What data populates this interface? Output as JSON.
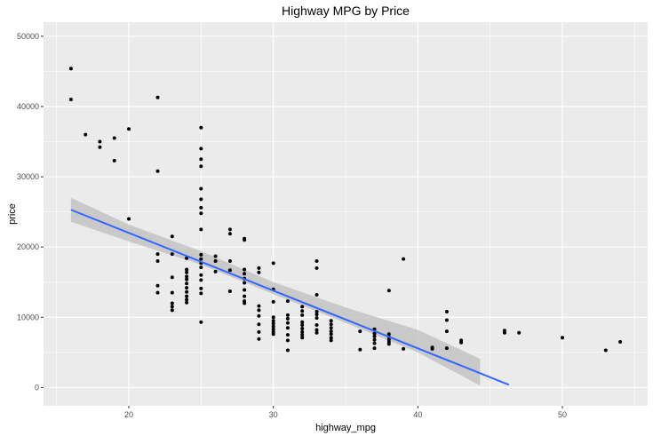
{
  "chart_data": {
    "type": "scatter",
    "title": "Highway MPG by Price",
    "xlabel": "highway_mpg",
    "ylabel": "price",
    "xlim": [
      14.1,
      55.9
    ],
    "ylim": [
      -2600,
      52000
    ],
    "x_ticks": [
      20,
      30,
      40,
      50
    ],
    "y_ticks": [
      0,
      10000,
      20000,
      30000,
      40000,
      50000
    ],
    "x_tick_labels": [
      "20",
      "30",
      "40",
      "50"
    ],
    "y_tick_labels": [
      "0",
      "10000",
      "20000",
      "30000",
      "40000",
      "50000"
    ],
    "grid": true,
    "panel_background": "#ebebeb",
    "grid_color": "#ffffff",
    "point_color": "#000000",
    "smooth_line_color": "#3366ff",
    "ribbon_color": "#bebebe",
    "points": [
      [
        16,
        45400
      ],
      [
        16,
        41000
      ],
      [
        17,
        36000
      ],
      [
        18,
        35000
      ],
      [
        18,
        34200
      ],
      [
        19,
        35500
      ],
      [
        19,
        32300
      ],
      [
        20,
        36800
      ],
      [
        20,
        24000
      ],
      [
        22,
        41300
      ],
      [
        22,
        30800
      ],
      [
        22,
        19000
      ],
      [
        22,
        18000
      ],
      [
        22,
        14500
      ],
      [
        22,
        13500
      ],
      [
        23,
        21500
      ],
      [
        23,
        19000
      ],
      [
        23,
        15700
      ],
      [
        23,
        13500
      ],
      [
        23,
        12000
      ],
      [
        23,
        11500
      ],
      [
        23,
        11000
      ],
      [
        24,
        18400
      ],
      [
        24,
        16800
      ],
      [
        24,
        16400
      ],
      [
        24,
        15800
      ],
      [
        24,
        15400
      ],
      [
        24,
        14800
      ],
      [
        24,
        14200
      ],
      [
        24,
        13600
      ],
      [
        24,
        13000
      ],
      [
        24,
        12500
      ],
      [
        24,
        12100
      ],
      [
        25,
        37000
      ],
      [
        25,
        34000
      ],
      [
        25,
        32500
      ],
      [
        25,
        31500
      ],
      [
        25,
        28300
      ],
      [
        25,
        26800
      ],
      [
        25,
        25600
      ],
      [
        25,
        24800
      ],
      [
        25,
        22500
      ],
      [
        25,
        18900
      ],
      [
        25,
        18300
      ],
      [
        25,
        17700
      ],
      [
        25,
        17100
      ],
      [
        25,
        16000
      ],
      [
        25,
        15300
      ],
      [
        25,
        14100
      ],
      [
        25,
        13400
      ],
      [
        25,
        9300
      ],
      [
        26,
        18700
      ],
      [
        26,
        18000
      ],
      [
        26,
        16500
      ],
      [
        27,
        22500
      ],
      [
        27,
        21900
      ],
      [
        27,
        18000
      ],
      [
        27,
        16700
      ],
      [
        27,
        13700
      ],
      [
        28,
        21200
      ],
      [
        28,
        21000
      ],
      [
        28,
        16800
      ],
      [
        28,
        16200
      ],
      [
        28,
        15500
      ],
      [
        28,
        14900
      ],
      [
        28,
        13900
      ],
      [
        28,
        13000
      ],
      [
        28,
        12300
      ],
      [
        28,
        12000
      ],
      [
        29,
        17000
      ],
      [
        29,
        16400
      ],
      [
        29,
        11600
      ],
      [
        29,
        11000
      ],
      [
        29,
        10200
      ],
      [
        29,
        9000
      ],
      [
        29,
        7900
      ],
      [
        29,
        6900
      ],
      [
        30,
        17700
      ],
      [
        30,
        14000
      ],
      [
        30,
        12200
      ],
      [
        30,
        10000
      ],
      [
        30,
        9500
      ],
      [
        30,
        9100
      ],
      [
        30,
        8700
      ],
      [
        30,
        8300
      ],
      [
        30,
        7900
      ],
      [
        30,
        7600
      ],
      [
        31,
        12300
      ],
      [
        31,
        10300
      ],
      [
        31,
        9800
      ],
      [
        31,
        9200
      ],
      [
        31,
        8500
      ],
      [
        31,
        7500
      ],
      [
        31,
        6700
      ],
      [
        31,
        5300
      ],
      [
        32,
        11500
      ],
      [
        32,
        10900
      ],
      [
        32,
        10300
      ],
      [
        32,
        9300
      ],
      [
        32,
        8900
      ],
      [
        32,
        8400
      ],
      [
        32,
        7900
      ],
      [
        32,
        7500
      ],
      [
        32,
        7100
      ],
      [
        33,
        18000
      ],
      [
        33,
        17000
      ],
      [
        33,
        13200
      ],
      [
        33,
        10800
      ],
      [
        33,
        10400
      ],
      [
        33,
        9900
      ],
      [
        33,
        8900
      ],
      [
        33,
        8200
      ],
      [
        33,
        7800
      ],
      [
        34,
        9500
      ],
      [
        34,
        9000
      ],
      [
        34,
        8500
      ],
      [
        34,
        8000
      ],
      [
        34,
        7600
      ],
      [
        34,
        7100
      ],
      [
        34,
        6700
      ],
      [
        36,
        8000
      ],
      [
        36,
        5400
      ],
      [
        37,
        8300
      ],
      [
        37,
        7700
      ],
      [
        37,
        7300
      ],
      [
        37,
        6800
      ],
      [
        37,
        6300
      ],
      [
        37,
        5600
      ],
      [
        38,
        13800
      ],
      [
        38,
        7600
      ],
      [
        38,
        7200
      ],
      [
        38,
        6800
      ],
      [
        38,
        6500
      ],
      [
        38,
        6200
      ],
      [
        39,
        18300
      ],
      [
        39,
        5500
      ],
      [
        41,
        5700
      ],
      [
        41,
        5500
      ],
      [
        42,
        10800
      ],
      [
        42,
        9600
      ],
      [
        42,
        8000
      ],
      [
        42,
        5600
      ],
      [
        43,
        6700
      ],
      [
        43,
        6400
      ],
      [
        46,
        8100
      ],
      [
        46,
        7800
      ],
      [
        47,
        7800
      ],
      [
        50,
        7100
      ],
      [
        53,
        5300
      ],
      [
        54,
        6500
      ]
    ],
    "smooth": {
      "method": "linear",
      "x": [
        16,
        46.3
      ],
      "y": [
        25300,
        400
      ],
      "ribbon": {
        "x": [
          16,
          20,
          25,
          30,
          35,
          40,
          44.3
        ],
        "lower": [
          23600,
          20800,
          17500,
          13300,
          9200,
          5000,
          300
        ],
        "upper": [
          27000,
          23200,
          19400,
          15000,
          11400,
          8200,
          4100
        ]
      }
    }
  }
}
